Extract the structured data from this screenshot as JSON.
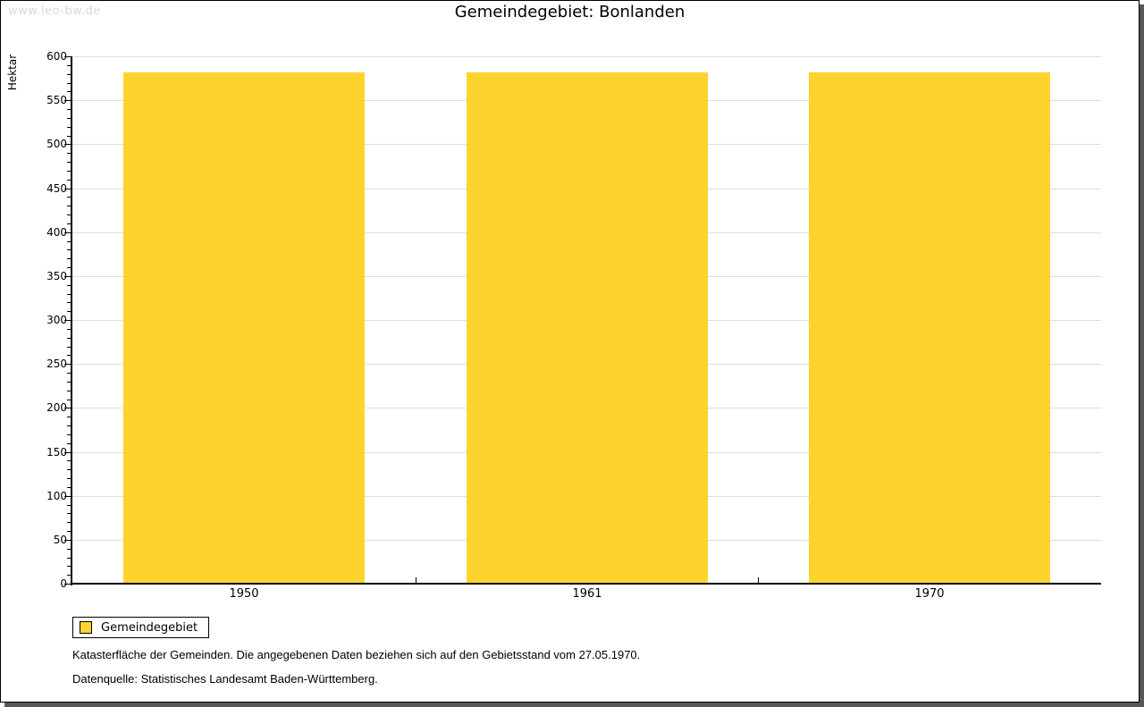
{
  "watermark": "www.leo-bw.de",
  "title": "Gemeindegebiet: Bonlanden",
  "legend": {
    "label": "Gemeindegebiet",
    "swatch_color": "#fcd42d"
  },
  "captions": {
    "line1": "Katasterfläche der Gemeinden. Die angegebenen Daten beziehen sich auf den Gebietsstand vom 27.05.1970.",
    "line2": "Datenquelle: Statistisches Landesamt Baden-Württemberg."
  },
  "chart_data": {
    "type": "bar",
    "title": "Gemeindegebiet: Bonlanden",
    "categories": [
      "1950",
      "1961",
      "1970"
    ],
    "series": [
      {
        "name": "Gemeindegebiet",
        "values": [
          582,
          582,
          582
        ]
      }
    ],
    "xlabel": "",
    "ylabel": "Hektar",
    "ylim": [
      0,
      600
    ],
    "y_major_step": 50,
    "y_minor_step": 10,
    "grid": true,
    "legend_position": "bottom-left",
    "bar_color": "#fcd42d",
    "gridline_color": "#dddddd"
  }
}
